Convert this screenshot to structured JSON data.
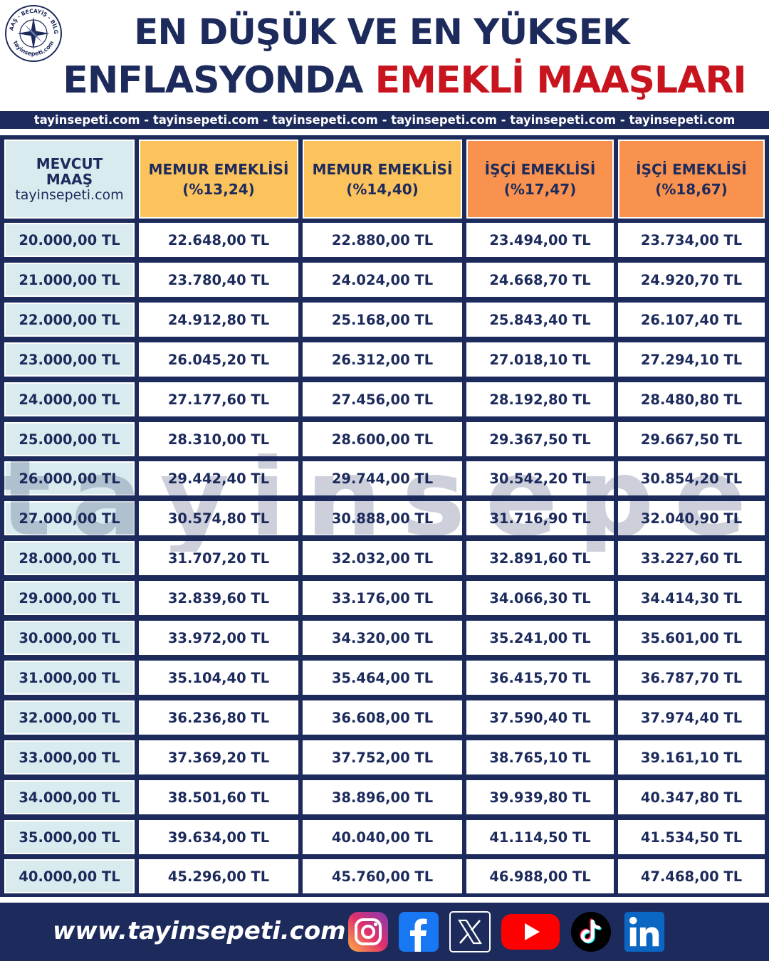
{
  "header": {
    "logo_text": "MAAŞ - BECAYİŞ - BİLGİ",
    "logo_site": "tayinsepeti.com",
    "title_line1": "EN DÜŞÜK VE EN YÜKSEK",
    "title_line2_dark": "ENFLASYONDA",
    "title_line2_red": "EMEKLİ MAAŞLARI",
    "banner": "tayinsepeti.com - tayinsepeti.com -  tayinsepeti.com - tayinsepeti.com - tayinsepeti.com - tayinsepeti.com"
  },
  "table": {
    "columns": [
      {
        "line1": "MEVCUT",
        "line2": "MAAŞ",
        "line3": "tayinsepeti.com"
      },
      {
        "line1": "MEMUR EMEKLİSİ",
        "line2": "(%13,24)"
      },
      {
        "line1": "MEMUR EMEKLİSİ",
        "line2": "(%14,40)"
      },
      {
        "line1": "İŞÇİ EMEKLİSİ",
        "line2": "(%17,47)"
      },
      {
        "line1": "İŞÇİ EMEKLİSİ",
        "line2": "(%18,67)"
      }
    ],
    "rows": [
      [
        "20.000,00 TL",
        "22.648,00 TL",
        "22.880,00 TL",
        "23.494,00 TL",
        "23.734,00 TL"
      ],
      [
        "21.000,00 TL",
        "23.780,40 TL",
        "24.024,00 TL",
        "24.668,70 TL",
        "24.920,70 TL"
      ],
      [
        "22.000,00 TL",
        "24.912,80 TL",
        "25.168,00 TL",
        "25.843,40 TL",
        "26.107,40 TL"
      ],
      [
        "23.000,00 TL",
        "26.045,20 TL",
        "26.312,00 TL",
        "27.018,10 TL",
        "27.294,10 TL"
      ],
      [
        "24.000,00 TL",
        "27.177,60 TL",
        "27.456,00 TL",
        "28.192,80 TL",
        "28.480,80 TL"
      ],
      [
        "25.000,00 TL",
        "28.310,00 TL",
        "28.600,00 TL",
        "29.367,50 TL",
        "29.667,50 TL"
      ],
      [
        "26.000,00 TL",
        "29.442,40 TL",
        "29.744,00 TL",
        "30.542,20 TL",
        "30.854,20 TL"
      ],
      [
        "27.000,00 TL",
        "30.574,80 TL",
        "30.888,00 TL",
        "31.716,90 TL",
        "32.040,90 TL"
      ],
      [
        "28.000,00 TL",
        "31.707,20 TL",
        "32.032,00 TL",
        "32.891,60 TL",
        "33.227,60 TL"
      ],
      [
        "29.000,00 TL",
        "32.839,60 TL",
        "33.176,00 TL",
        "34.066,30 TL",
        "34.414,30 TL"
      ],
      [
        "30.000,00 TL",
        "33.972,00 TL",
        "34.320,00 TL",
        "35.241,00 TL",
        "35.601,00 TL"
      ],
      [
        "31.000,00 TL",
        "35.104,40 TL",
        "35.464,00 TL",
        "36.415,70 TL",
        "36.787,70 TL"
      ],
      [
        "32.000,00 TL",
        "36.236,80 TL",
        "36.608,00 TL",
        "37.590,40 TL",
        "37.974,40 TL"
      ],
      [
        "33.000,00 TL",
        "37.369,20 TL",
        "37.752,00 TL",
        "38.765,10 TL",
        "39.161,10 TL"
      ],
      [
        "34.000,00 TL",
        "38.501,60 TL",
        "38.896,00 TL",
        "39.939,80 TL",
        "40.347,80 TL"
      ],
      [
        "35.000,00 TL",
        "39.634,00 TL",
        "40.040,00 TL",
        "41.114,50 TL",
        "41.534,50 TL"
      ],
      [
        "40.000,00 TL",
        "45.296,00 TL",
        "45.760,00 TL",
        "46.988,00 TL",
        "47.468,00 TL"
      ]
    ]
  },
  "watermark": "tayinsepeti",
  "footer": {
    "url": "www.tayinsepeti.com",
    "social": [
      "instagram-icon",
      "facebook-icon",
      "x-icon",
      "youtube-icon",
      "tiktok-icon",
      "linkedin-icon"
    ]
  },
  "colors": {
    "navy": "#1c2a5c",
    "red": "#c8141e",
    "header_light": "#d9ebef",
    "header_yellow": "#fcc35c",
    "header_orange": "#f9924e"
  }
}
